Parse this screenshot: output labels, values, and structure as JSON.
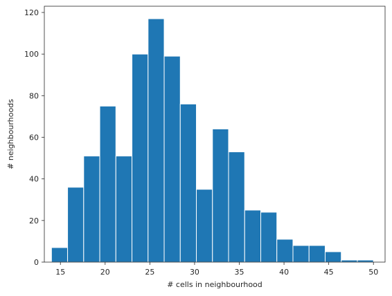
{
  "chart_data": {
    "type": "histogram",
    "bar_color": "#1f77b4",
    "edge_color": "#ffffff",
    "axes_color": "#262626",
    "xlabel": "# cells in neighbourhood",
    "ylabel": "# neighbourhoods",
    "xlim": [
      13.2,
      51.3
    ],
    "ylim": [
      0,
      123
    ],
    "grid": false,
    "xticks": [
      15,
      20,
      25,
      30,
      35,
      40,
      45,
      50
    ],
    "yticks": [
      0,
      20,
      40,
      60,
      80,
      100,
      120
    ],
    "bin_edges": [
      14.0,
      15.8,
      17.6,
      19.4,
      21.2,
      23.0,
      24.8,
      26.6,
      28.4,
      30.2,
      32.0,
      33.8,
      35.6,
      37.4,
      39.2,
      41.0,
      42.8,
      44.6,
      46.4,
      48.2,
      50.0
    ],
    "counts": [
      7,
      36,
      51,
      75,
      51,
      100,
      117,
      99,
      76,
      35,
      64,
      53,
      25,
      24,
      11,
      8,
      8,
      5,
      1,
      1
    ]
  }
}
